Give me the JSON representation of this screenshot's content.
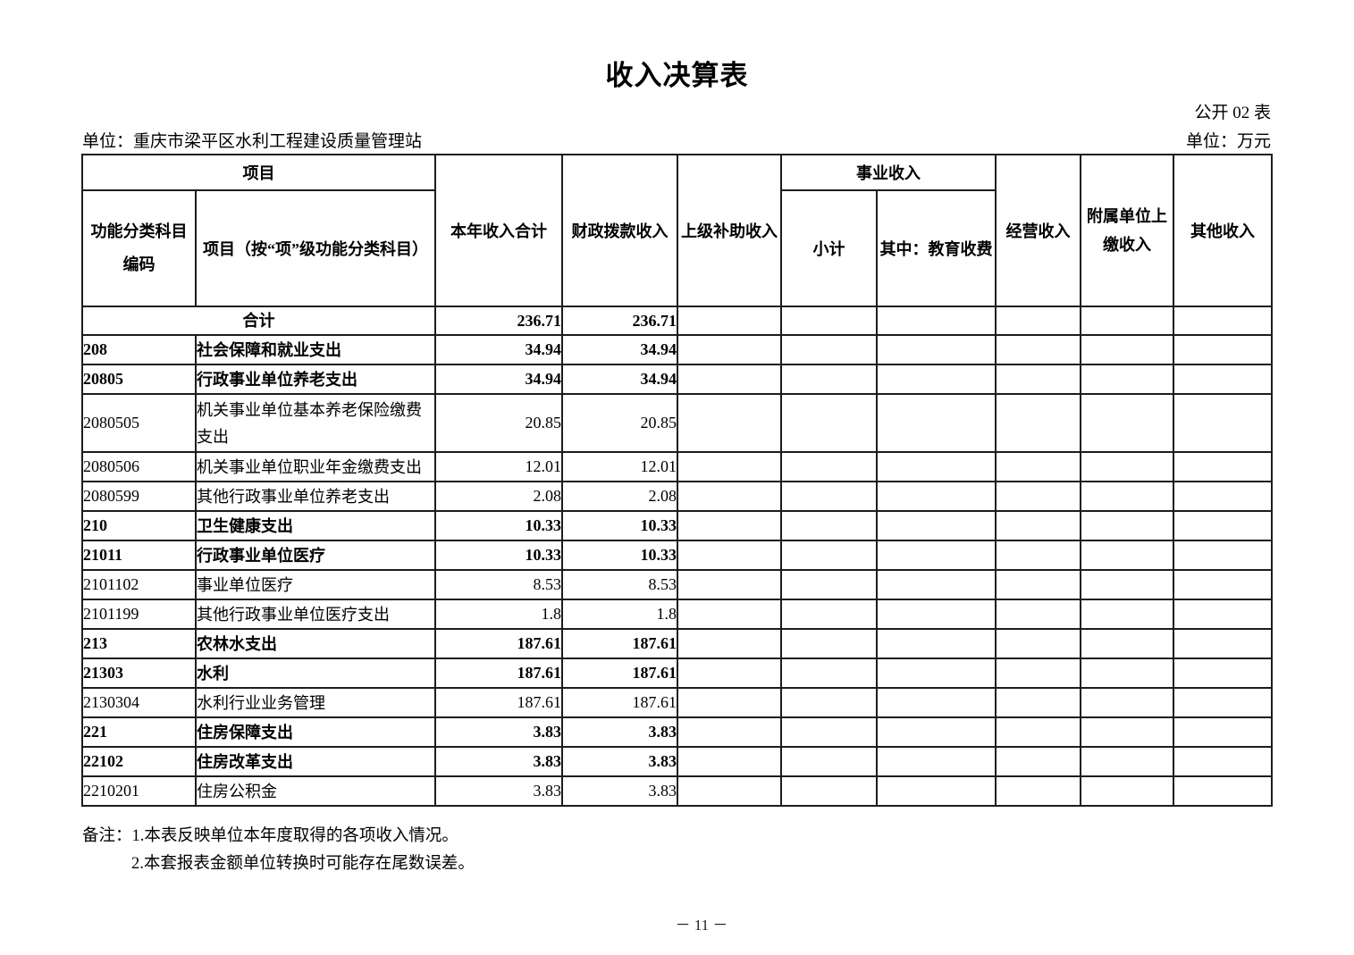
{
  "page": {
    "title": "收入决算表",
    "table_code": "公开 02 表",
    "unit_left": "单位：重庆市梁平区水利工程建设质量管理站",
    "unit_right": "单位：万元",
    "page_number": "－ 11 －"
  },
  "table": {
    "header": {
      "project_group": "项目",
      "code_col": "功能分类科目编码",
      "name_col": "项目（按“项”级功能分类科目）",
      "total_col": "本年收入合计",
      "fiscal_col": "财政拨款收入",
      "superior_col": "上级补助收入",
      "business_group": "事业收入",
      "subtotal_col": "小计",
      "education_col": "其中：教育收费",
      "operating_col": "经营收入",
      "affiliated_col": "附属单位上缴收入",
      "other_col": "其他收入"
    },
    "empty_column_count": 6,
    "rows": [
      {
        "code": "",
        "name": "合计",
        "total": "236.71",
        "fiscal": "236.71",
        "bold": true,
        "merged": true
      },
      {
        "code": "208",
        "name": "社会保障和就业支出",
        "total": "34.94",
        "fiscal": "34.94",
        "bold": true
      },
      {
        "code": "20805",
        "name": "行政事业单位养老支出",
        "total": "34.94",
        "fiscal": "34.94",
        "bold": true
      },
      {
        "code": "2080505",
        "name": "机关事业单位基本养老保险缴费支出",
        "total": "20.85",
        "fiscal": "20.85",
        "bold": false,
        "tall": true
      },
      {
        "code": "2080506",
        "name": "机关事业单位职业年金缴费支出",
        "total": "12.01",
        "fiscal": "12.01",
        "bold": false
      },
      {
        "code": "2080599",
        "name": "其他行政事业单位养老支出",
        "total": "2.08",
        "fiscal": "2.08",
        "bold": false
      },
      {
        "code": "210",
        "name": "卫生健康支出",
        "total": "10.33",
        "fiscal": "10.33",
        "bold": true
      },
      {
        "code": "21011",
        "name": "行政事业单位医疗",
        "total": "10.33",
        "fiscal": "10.33",
        "bold": true
      },
      {
        "code": "2101102",
        "name": "事业单位医疗",
        "total": "8.53",
        "fiscal": "8.53",
        "bold": false
      },
      {
        "code": "2101199",
        "name": "其他行政事业单位医疗支出",
        "total": "1.8",
        "fiscal": "1.8",
        "bold": false
      },
      {
        "code": "213",
        "name": "农林水支出",
        "total": "187.61",
        "fiscal": "187.61",
        "bold": true
      },
      {
        "code": "21303",
        "name": "水利",
        "total": "187.61",
        "fiscal": "187.61",
        "bold": true
      },
      {
        "code": "2130304",
        "name": "水利行业业务管理",
        "total": "187.61",
        "fiscal": "187.61",
        "bold": false
      },
      {
        "code": "221",
        "name": "住房保障支出",
        "total": "3.83",
        "fiscal": "3.83",
        "bold": true
      },
      {
        "code": "22102",
        "name": "住房改革支出",
        "total": "3.83",
        "fiscal": "3.83",
        "bold": true
      },
      {
        "code": "2210201",
        "name": "住房公积金",
        "total": "3.83",
        "fiscal": "3.83",
        "bold": false
      }
    ]
  },
  "notes": {
    "line1": "备注：1.本表反映单位本年度取得的各项收入情况。",
    "line2": "2.本套报表金额单位转换时可能存在尾数误差。"
  }
}
